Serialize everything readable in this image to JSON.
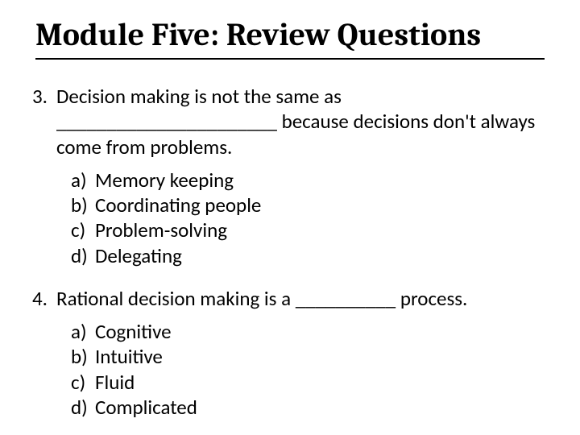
{
  "title": "Module Five: Review Questions",
  "colors": {
    "background": "#ffffff",
    "text": "#000000",
    "rule": "#000000"
  },
  "typography": {
    "title_font": "Cambria",
    "title_size_pt": 30,
    "title_weight": 700,
    "body_font": "Calibri",
    "body_size_pt": 19,
    "body_weight": 400
  },
  "questions": [
    {
      "number": "3.",
      "text": "Decision making is not the same as ______________________ because decisions don't always come from problems.",
      "options": [
        {
          "letter": "a)",
          "text": "Memory keeping"
        },
        {
          "letter": "b)",
          "text": "Coordinating people"
        },
        {
          "letter": "c)",
          "text": "Problem-solving"
        },
        {
          "letter": "d)",
          "text": "Delegating"
        }
      ]
    },
    {
      "number": "4.",
      "text": "Rational decision making is a __________ process.",
      "options": [
        {
          "letter": "a)",
          "text": "Cognitive"
        },
        {
          "letter": "b)",
          "text": "Intuitive"
        },
        {
          "letter": "c)",
          "text": "Fluid"
        },
        {
          "letter": "d)",
          "text": "Complicated"
        }
      ]
    }
  ]
}
